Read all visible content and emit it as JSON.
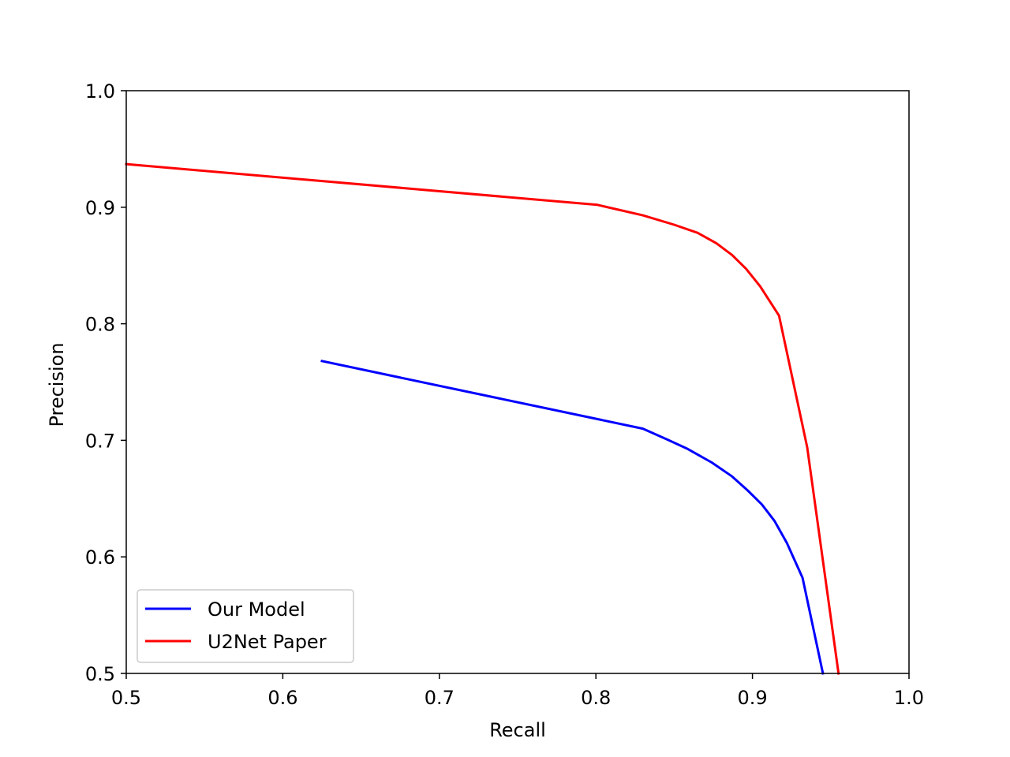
{
  "chart_data": {
    "type": "line",
    "title": "",
    "xlabel": "Recall",
    "ylabel": "Precision",
    "xlim": [
      0.5,
      1.0
    ],
    "ylim": [
      0.5,
      1.0
    ],
    "xticks": [
      "0.5",
      "0.6",
      "0.7",
      "0.8",
      "0.9",
      "1.0"
    ],
    "yticks": [
      "0.5",
      "0.6",
      "0.7",
      "0.8",
      "0.9",
      "1.0"
    ],
    "grid": false,
    "legend_position": "lower-left",
    "series": [
      {
        "name": "Our Model",
        "color": "#0000ff",
        "x": [
          0.625,
          0.83,
          0.845,
          0.858,
          0.874,
          0.887,
          0.897,
          0.906,
          0.914,
          0.922,
          0.932,
          0.945
        ],
        "y": [
          0.768,
          0.71,
          0.701,
          0.693,
          0.681,
          0.669,
          0.657,
          0.645,
          0.631,
          0.612,
          0.582,
          0.5
        ]
      },
      {
        "name": "U2Net Paper",
        "color": "#ff0000",
        "x": [
          0.5,
          0.801,
          0.83,
          0.85,
          0.865,
          0.877,
          0.887,
          0.896,
          0.905,
          0.917,
          0.935,
          0.955
        ],
        "y": [
          0.937,
          0.902,
          0.893,
          0.885,
          0.878,
          0.869,
          0.859,
          0.847,
          0.832,
          0.807,
          0.694,
          0.5
        ]
      }
    ]
  }
}
